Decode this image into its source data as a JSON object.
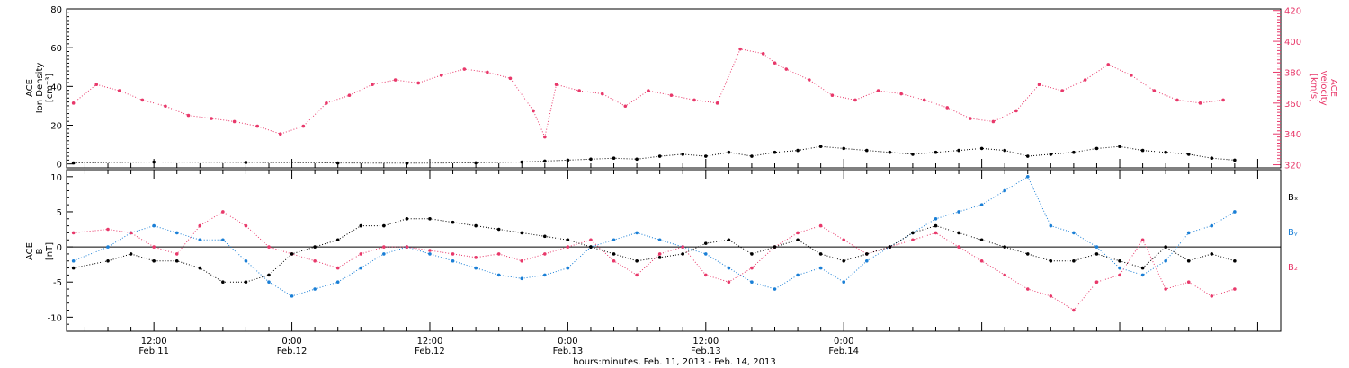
{
  "colors": {
    "density": "#000000",
    "velocity": "#e8386a",
    "bx": "#000000",
    "by": "#1a7fd6",
    "bz": "#e8386a"
  },
  "xlabel": "hours:minutes, Feb. 11, 2013 - Feb. 14, 2013",
  "x_ticks": [
    {
      "time": "12:00",
      "date": "Feb.11"
    },
    {
      "time": "0:00",
      "date": "Feb.12"
    },
    {
      "time": "12:00",
      "date": "Feb.12"
    },
    {
      "time": "0:00",
      "date": "Feb.13"
    },
    {
      "time": "12:00",
      "date": "Feb.13"
    },
    {
      "time": "0:00",
      "date": "Feb.14"
    }
  ],
  "panels": {
    "top": {
      "ylabel_left": [
        "ACE",
        "Ion Density",
        "[cm⁻³]"
      ],
      "ylabel_right": [
        "ACE",
        "Velocity",
        "[km/s]"
      ],
      "left_ticks": [
        "0",
        "20",
        "40",
        "60",
        "80"
      ],
      "right_ticks": [
        "320",
        "340",
        "360",
        "380",
        "400",
        "420"
      ]
    },
    "bottom": {
      "ylabel_left": [
        "ACE",
        "B",
        "[nT]"
      ],
      "left_ticks": [
        "-10",
        "-5",
        "0",
        "5",
        "10"
      ],
      "legend": [
        "Bₓ",
        "Bᵧ",
        "B₂"
      ]
    }
  },
  "chart_data": [
    {
      "type": "scatter",
      "x_unit": "hours since 2013-02-11 00:00",
      "xlim": [
        4.4,
        110
      ],
      "ylim_left": [
        -2,
        80
      ],
      "ylim_right": [
        318,
        421
      ],
      "series": [
        {
          "name": "Ion Density",
          "axis": "left",
          "x": [
            5,
            12,
            20,
            28,
            34,
            40,
            44,
            46,
            48,
            50,
            52,
            54,
            56,
            58,
            60,
            62,
            64,
            66,
            68,
            70,
            72,
            74,
            76,
            78,
            80,
            82,
            84,
            86,
            88,
            90,
            92,
            94,
            96,
            98,
            100,
            102,
            104,
            106
          ],
          "y": [
            0.5,
            1,
            0.8,
            0.5,
            0.4,
            0.6,
            1,
            1.5,
            2,
            2.5,
            3,
            2.5,
            4,
            5,
            4,
            6,
            4,
            6,
            7,
            9,
            8,
            7,
            6,
            5,
            6,
            7,
            8,
            7,
            4,
            5,
            6,
            8,
            9,
            7,
            6,
            5,
            3,
            2
          ]
        },
        {
          "name": "Velocity",
          "axis": "right",
          "x": [
            5,
            7,
            9,
            11,
            13,
            15,
            17,
            19,
            21,
            23,
            25,
            27,
            29,
            31,
            33,
            35,
            37,
            39,
            41,
            43,
            45,
            46,
            47,
            49,
            51,
            53,
            55,
            57,
            59,
            61,
            63,
            65,
            66,
            67,
            69,
            71,
            73,
            75,
            77,
            79,
            81,
            83,
            85,
            87,
            89,
            91,
            93,
            95,
            97,
            99,
            101,
            103,
            105
          ],
          "y": [
            360,
            372,
            368,
            362,
            358,
            352,
            350,
            348,
            345,
            340,
            345,
            360,
            365,
            372,
            375,
            373,
            378,
            382,
            380,
            376,
            355,
            338,
            372,
            368,
            366,
            358,
            368,
            365,
            362,
            360,
            395,
            392,
            386,
            382,
            375,
            365,
            362,
            368,
            366,
            362,
            357,
            350,
            348,
            355,
            372,
            368,
            375,
            385,
            378,
            368,
            362,
            360,
            362
          ]
        }
      ]
    },
    {
      "type": "scatter",
      "x_unit": "hours since 2013-02-11 00:00",
      "xlim": [
        4.4,
        110
      ],
      "ylim": [
        -12,
        11
      ],
      "series": [
        {
          "name": "Bₓ",
          "x": [
            5,
            8,
            10,
            12,
            14,
            16,
            18,
            20,
            22,
            24,
            26,
            28,
            30,
            32,
            34,
            36,
            38,
            40,
            42,
            44,
            46,
            48,
            50,
            52,
            54,
            56,
            58,
            60,
            62,
            64,
            66,
            68,
            70,
            72,
            74,
            76,
            78,
            80,
            82,
            84,
            86,
            88,
            90,
            92,
            94,
            96,
            98,
            100,
            102,
            104,
            106
          ],
          "y": [
            -3,
            -2,
            -1,
            -2,
            -2,
            -3,
            -5,
            -5,
            -4,
            -1,
            0,
            1,
            3,
            3,
            4,
            4,
            3.5,
            3,
            2.5,
            2,
            1.5,
            1,
            0,
            -1,
            -2,
            -1.5,
            -1,
            0.5,
            1,
            -1,
            0,
            1,
            -1,
            -2,
            -1,
            0,
            2,
            3,
            2,
            1,
            0,
            -1,
            -2,
            -2,
            -1,
            -2,
            -3,
            0,
            -2,
            -1,
            -2
          ]
        },
        {
          "name": "Bᵧ",
          "x": [
            5,
            8,
            10,
            12,
            14,
            16,
            18,
            20,
            22,
            24,
            26,
            28,
            30,
            32,
            34,
            36,
            38,
            40,
            42,
            44,
            46,
            48,
            50,
            52,
            54,
            56,
            58,
            60,
            62,
            64,
            66,
            68,
            70,
            72,
            74,
            76,
            78,
            80,
            82,
            84,
            86,
            88,
            90,
            92,
            94,
            96,
            98,
            100,
            102,
            104,
            106
          ],
          "y": [
            -2,
            0,
            2,
            3,
            2,
            1,
            1,
            -2,
            -5,
            -7,
            -6,
            -5,
            -3,
            -1,
            0,
            -1,
            -2,
            -3,
            -4,
            -4.5,
            -4,
            -3,
            0,
            1,
            2,
            1,
            0,
            -1,
            -3,
            -5,
            -6,
            -4,
            -3,
            -5,
            -2,
            0,
            2,
            4,
            5,
            6,
            8,
            10,
            3,
            2,
            0,
            -3,
            -4,
            -2,
            2,
            3,
            5
          ]
        },
        {
          "name": "B₂",
          "x": [
            5,
            8,
            10,
            12,
            14,
            16,
            18,
            20,
            22,
            24,
            26,
            28,
            30,
            32,
            34,
            36,
            38,
            40,
            42,
            44,
            46,
            48,
            50,
            52,
            54,
            56,
            58,
            60,
            62,
            64,
            66,
            68,
            70,
            72,
            74,
            76,
            78,
            80,
            82,
            84,
            86,
            88,
            90,
            92,
            94,
            96,
            98,
            100,
            102,
            104,
            106
          ],
          "y": [
            2,
            2.5,
            2,
            0,
            -1,
            3,
            5,
            3,
            0,
            -1,
            -2,
            -3,
            -1,
            0,
            0,
            -0.5,
            -1,
            -1.5,
            -1,
            -2,
            -1,
            0,
            1,
            -2,
            -4,
            -1,
            0,
            -4,
            -5,
            -3,
            0,
            2,
            3,
            1,
            -1,
            0,
            1,
            2,
            0,
            -2,
            -4,
            -6,
            -7,
            -9,
            -5,
            -4,
            1,
            -6,
            -5,
            -7,
            -6
          ]
        }
      ]
    }
  ]
}
